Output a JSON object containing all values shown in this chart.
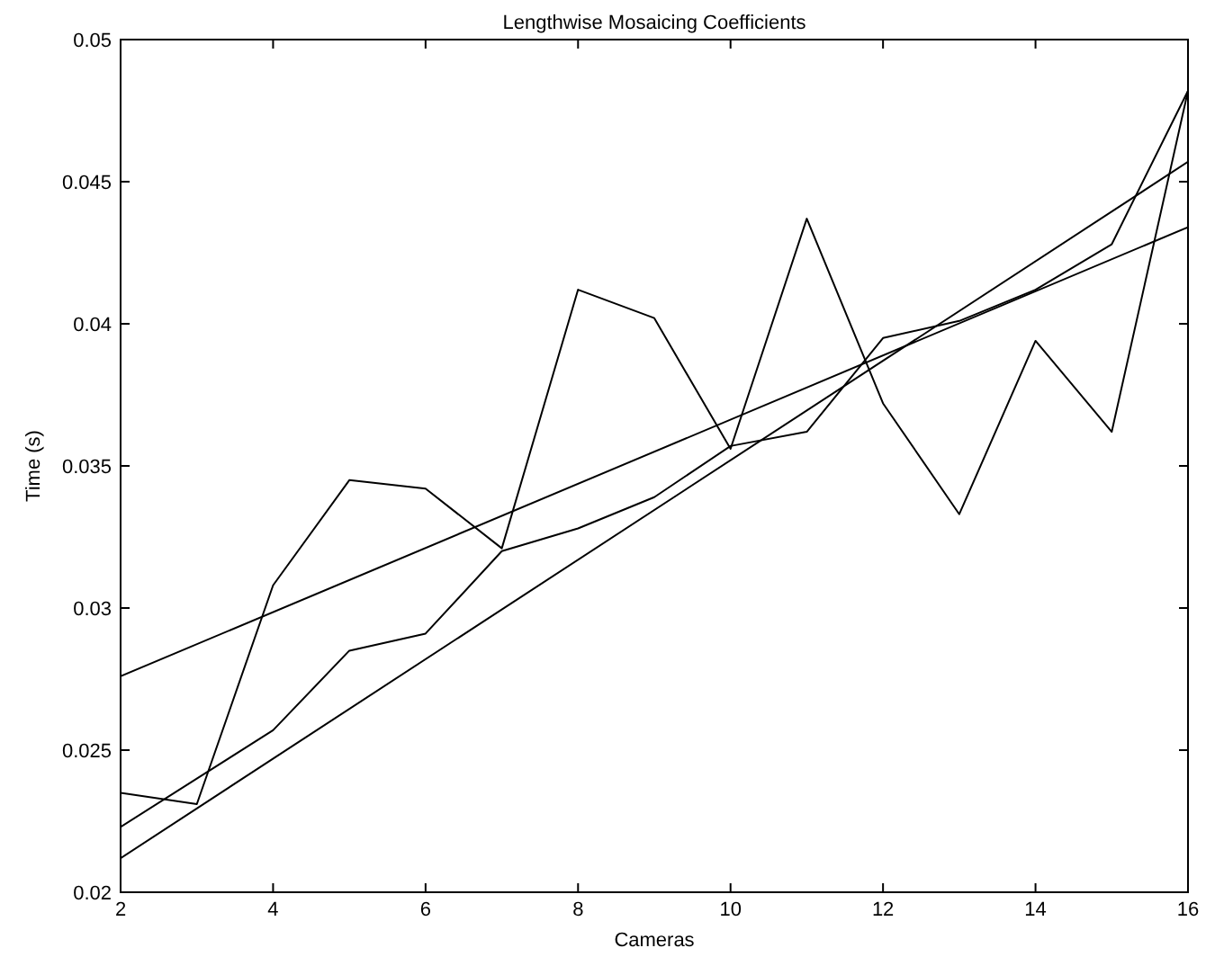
{
  "chart_data": {
    "type": "line",
    "title": "Lengthwise Mosaicing Coefficients",
    "xlabel": "Cameras",
    "ylabel": "Time (s)",
    "xlim": [
      2,
      16
    ],
    "ylim": [
      0.02,
      0.05
    ],
    "xticks": [
      2,
      4,
      6,
      8,
      10,
      12,
      14,
      16
    ],
    "yticks": [
      0.02,
      0.025,
      0.03,
      0.035,
      0.04,
      0.045,
      0.05
    ],
    "grid": false,
    "marker": "none",
    "line_style": "solid",
    "series": [
      {
        "color": "#000000",
        "x": [
          2,
          3,
          4,
          5,
          6,
          7,
          8,
          9,
          10,
          11,
          12,
          13,
          14,
          15,
          16
        ],
        "values": [
          0.0235,
          0.0231,
          0.0308,
          0.0345,
          0.0342,
          0.0321,
          0.0412,
          0.0402,
          0.0356,
          0.0437,
          0.0372,
          0.0333,
          0.0394,
          0.0362,
          0.0482
        ]
      },
      {
        "color": "#000000",
        "x": [
          2,
          3,
          4,
          5,
          6,
          7,
          8,
          9,
          10,
          11,
          12,
          13,
          14,
          15,
          16
        ],
        "values": [
          0.0223,
          0.024,
          0.0257,
          0.0285,
          0.0291,
          0.032,
          0.0328,
          0.0339,
          0.0357,
          0.0362,
          0.0395,
          0.0401,
          0.0412,
          0.0428,
          0.0482
        ]
      },
      {
        "color": "#000000",
        "x": [
          2,
          16
        ],
        "values": [
          0.0276,
          0.0434
        ]
      },
      {
        "color": "#000000",
        "x": [
          2,
          16
        ],
        "values": [
          0.0212,
          0.0457
        ]
      }
    ]
  }
}
